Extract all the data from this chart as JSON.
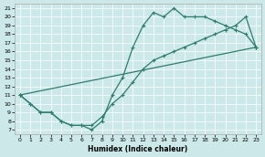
{
  "xlabel": "Humidex (Indice chaleur)",
  "bg_color": "#cce8e8",
  "line_color": "#2e7d6e",
  "xlim": [
    -0.5,
    23.5
  ],
  "ylim": [
    6.5,
    21.5
  ],
  "xticks": [
    0,
    1,
    2,
    3,
    4,
    5,
    6,
    7,
    8,
    9,
    10,
    11,
    12,
    13,
    14,
    15,
    16,
    17,
    18,
    19,
    20,
    21,
    22,
    23
  ],
  "yticks": [
    7,
    8,
    9,
    10,
    11,
    12,
    13,
    14,
    15,
    16,
    17,
    18,
    19,
    20,
    21
  ],
  "series1_x": [
    0,
    1,
    2,
    3,
    4,
    5,
    6,
    7,
    8,
    9,
    10,
    11,
    12,
    13,
    14,
    15,
    16,
    17,
    18,
    19,
    20,
    21,
    22,
    23
  ],
  "series1_y": [
    11,
    10,
    9,
    9,
    8,
    7.5,
    7.5,
    7,
    8,
    11,
    13,
    16.5,
    19,
    20.5,
    20,
    21,
    20,
    20,
    20,
    19.5,
    19,
    18.5,
    18,
    16.5
  ],
  "series2_x": [
    0,
    1,
    2,
    3,
    4,
    5,
    6,
    7,
    8,
    9,
    10,
    11,
    12,
    13,
    14,
    15,
    16,
    17,
    18,
    19,
    20,
    21,
    22,
    23
  ],
  "series2_y": [
    11,
    10,
    9,
    9,
    8,
    7.5,
    7.5,
    7.5,
    8.5,
    10,
    11,
    12.5,
    14,
    15,
    15.5,
    16,
    16.5,
    17,
    17.5,
    18,
    18.5,
    19,
    20,
    16.5
  ],
  "series3_x": [
    0,
    23
  ],
  "series3_y": [
    11,
    16.5
  ],
  "markersize": 3,
  "linewidth": 0.9
}
